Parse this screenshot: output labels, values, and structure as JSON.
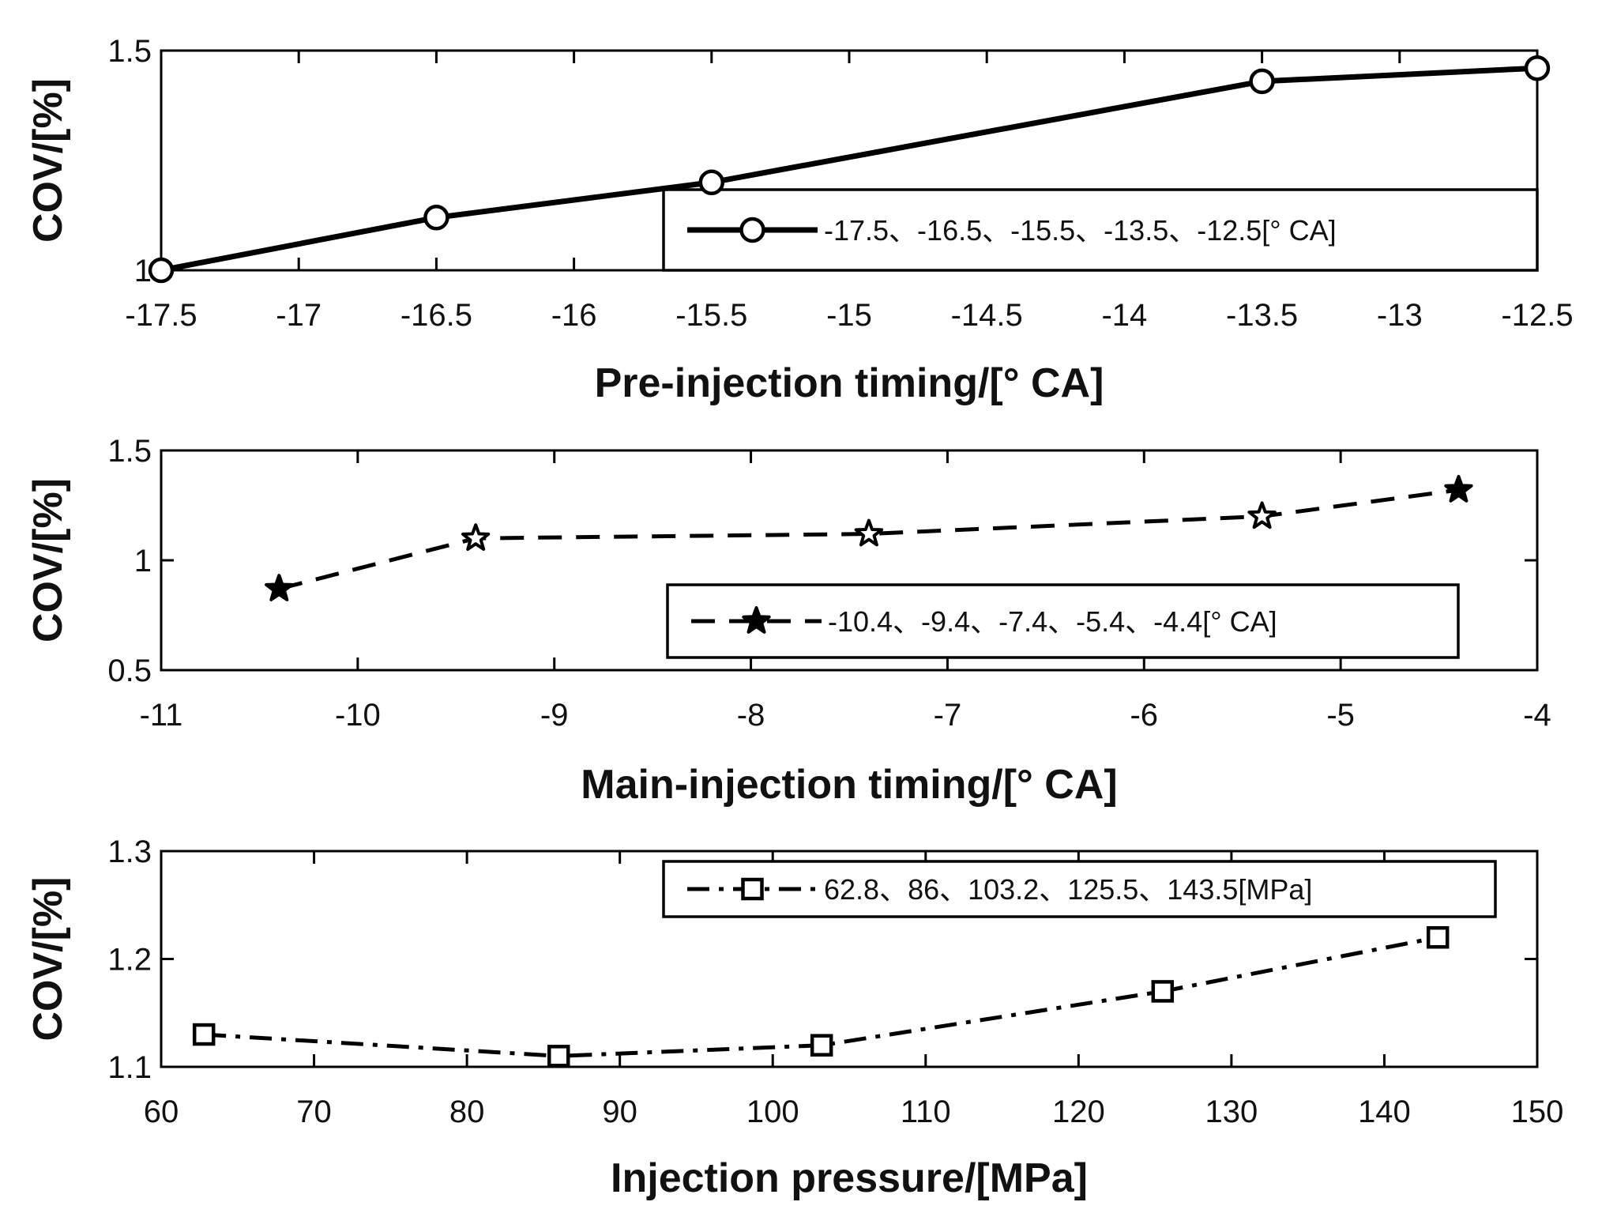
{
  "chart_data": [
    {
      "type": "line",
      "title": "",
      "xlabel": "Pre-injection timing/[° CA]",
      "ylabel": "COV/[%]",
      "xlim": [
        -17.5,
        -12.5
      ],
      "ylim": [
        1,
        1.5
      ],
      "xticks": [
        -17.5,
        -17,
        -16.5,
        -16,
        -15.5,
        -15,
        -14.5,
        -14,
        -13.5,
        -13,
        -12.5
      ],
      "xtick_labels": [
        "-17.5",
        "-17",
        "-16.5",
        "-16",
        "-15.5",
        "-15",
        "-14.5",
        "-14",
        "-13.5",
        "-13",
        "-12.5"
      ],
      "yticks": [
        1,
        1.5
      ],
      "ytick_labels": [
        "1",
        "1.5"
      ],
      "grid": false,
      "legend_position": "bottom-right",
      "series": [
        {
          "name": "-17.5、-16.5、-15.5、-13.5、-12.5[° CA]",
          "marker": "circle",
          "linestyle": "solid",
          "color": "#000000",
          "x": [
            -17.5,
            -16.5,
            -15.5,
            -13.5,
            -12.5
          ],
          "y": [
            1.0,
            1.12,
            1.2,
            1.43,
            1.46
          ]
        }
      ]
    },
    {
      "type": "line",
      "title": "",
      "xlabel": "Main-injection timing/[° CA]",
      "ylabel": "COV/[%]",
      "xlim": [
        -11,
        -4
      ],
      "ylim": [
        0.5,
        1.5
      ],
      "xticks": [
        -11,
        -10,
        -9,
        -8,
        -7,
        -6,
        -5,
        -4
      ],
      "xtick_labels": [
        "-11",
        "-10",
        "-9",
        "-8",
        "-7",
        "-6",
        "-5",
        "-4"
      ],
      "yticks": [
        0.5,
        1,
        1.5
      ],
      "ytick_labels": [
        "0.5",
        "1",
        "1.5"
      ],
      "grid": false,
      "legend_position": "bottom-right",
      "series": [
        {
          "name": "-10.4、-9.4、-7.4、-5.4、-4.4[° CA]",
          "marker": "star",
          "linestyle": "dashed",
          "color": "#000000",
          "x": [
            -10.4,
            -9.4,
            -7.4,
            -5.4,
            -4.4
          ],
          "y": [
            0.87,
            1.1,
            1.12,
            1.2,
            1.32
          ]
        }
      ]
    },
    {
      "type": "line",
      "title": "",
      "xlabel": "Injection pressure/[MPa]",
      "ylabel": "COV/[%]",
      "xlim": [
        60,
        150
      ],
      "ylim": [
        1.1,
        1.3
      ],
      "xticks": [
        60,
        70,
        80,
        90,
        100,
        110,
        120,
        130,
        140,
        150
      ],
      "xtick_labels": [
        "60",
        "70",
        "80",
        "90",
        "100",
        "110",
        "120",
        "130",
        "140",
        "150"
      ],
      "yticks": [
        1.1,
        1.2,
        1.3
      ],
      "ytick_labels": [
        "1.1",
        "1.2",
        "1.3"
      ],
      "grid": false,
      "legend_position": "top-right",
      "series": [
        {
          "name": "62.8、86、103.2、125.5、143.5[MPa]",
          "marker": "square",
          "linestyle": "dashdot",
          "color": "#000000",
          "x": [
            62.8,
            86,
            103.2,
            125.5,
            143.5
          ],
          "y": [
            1.13,
            1.11,
            1.12,
            1.17,
            1.22
          ]
        }
      ]
    }
  ]
}
